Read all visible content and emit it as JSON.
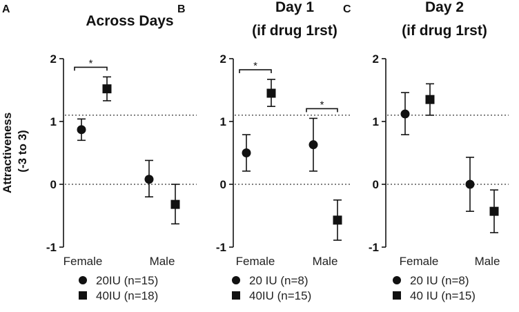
{
  "y_axis_label_line1": "Attractiveness",
  "y_axis_label_line2": "(-3 to 3)",
  "chart_data": [
    {
      "type": "scatter",
      "panel_letter": "A",
      "title_lines": [
        "Across Days"
      ],
      "categories": [
        "Female",
        "Male"
      ],
      "ylim": [
        -1,
        2
      ],
      "yticks": [
        "2",
        "1",
        "0",
        "-1"
      ],
      "reference_lines": [
        0,
        1.1
      ],
      "series": [
        {
          "name": "20IU (n=15)",
          "marker": "circle",
          "values": [
            0.87,
            0.08
          ],
          "err_low": [
            0.7,
            -0.2
          ],
          "err_high": [
            1.04,
            0.38
          ]
        },
        {
          "name": "40IU (n=18)",
          "marker": "square",
          "values": [
            1.52,
            -0.32
          ],
          "err_low": [
            1.33,
            -0.63
          ],
          "err_high": [
            1.71,
            0.0
          ]
        }
      ],
      "significance": [
        {
          "category": "Female",
          "label": "*"
        }
      ]
    },
    {
      "type": "scatter",
      "panel_letter": "B",
      "title_lines": [
        "Day 1",
        "(if drug 1rst)"
      ],
      "categories": [
        "Female",
        "Male"
      ],
      "ylim": [
        -1,
        2
      ],
      "yticks": [
        "2",
        "1",
        "0",
        "-1"
      ],
      "reference_lines": [
        0,
        1.1
      ],
      "series": [
        {
          "name": "20 IU (n=8)",
          "marker": "circle",
          "values": [
            0.5,
            0.63
          ],
          "err_low": [
            0.21,
            0.21
          ],
          "err_high": [
            0.79,
            1.05
          ]
        },
        {
          "name": "40IU (n=15)",
          "marker": "square",
          "values": [
            1.45,
            -0.57
          ],
          "err_low": [
            1.24,
            -0.89
          ],
          "err_high": [
            1.67,
            -0.25
          ]
        }
      ],
      "significance": [
        {
          "category": "Female",
          "label": "*"
        },
        {
          "category": "Male",
          "label": "*"
        }
      ]
    },
    {
      "type": "scatter",
      "panel_letter": "C",
      "title_lines": [
        "Day 2",
        "(if drug 1rst)"
      ],
      "categories": [
        "Female",
        "Male"
      ],
      "ylim": [
        -1,
        2
      ],
      "yticks": [
        "2",
        "1",
        "0",
        "-1"
      ],
      "reference_lines": [
        0,
        1.1
      ],
      "series": [
        {
          "name": "20 IU (n=8)",
          "marker": "circle",
          "values": [
            1.12,
            0.0
          ],
          "err_low": [
            0.79,
            -0.43
          ],
          "err_high": [
            1.46,
            0.43
          ]
        },
        {
          "name": "40 IU (n=15)",
          "marker": "square",
          "values": [
            1.35,
            -0.43
          ],
          "err_low": [
            1.1,
            -0.77
          ],
          "err_high": [
            1.6,
            -0.09
          ]
        }
      ],
      "significance": []
    }
  ]
}
